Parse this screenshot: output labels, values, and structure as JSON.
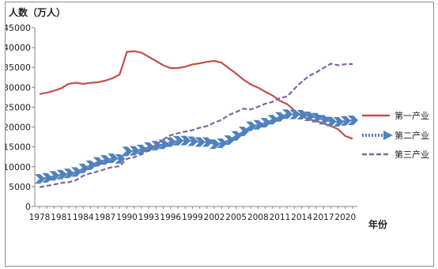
{
  "chart_data": {
    "type": "line",
    "ylabel": "人数（万人）",
    "xlabel": "年份",
    "ylim": [
      0,
      45000
    ],
    "yticks": [
      0,
      5000,
      10000,
      15000,
      20000,
      25000,
      30000,
      35000,
      40000,
      45000
    ],
    "xtick_labels": [
      "1978",
      "1981",
      "1984",
      "1987",
      "1990",
      "1993",
      "1996",
      "1999",
      "2002",
      "2005",
      "2008",
      "2011",
      "2014",
      "2017",
      "2020"
    ],
    "x": [
      1978,
      1979,
      1980,
      1981,
      1982,
      1983,
      1984,
      1985,
      1986,
      1987,
      1988,
      1989,
      1990,
      1991,
      1992,
      1993,
      1994,
      1995,
      1996,
      1997,
      1998,
      1999,
      2000,
      2001,
      2002,
      2003,
      2004,
      2005,
      2006,
      2007,
      2008,
      2009,
      2010,
      2011,
      2012,
      2013,
      2014,
      2015,
      2016,
      2017,
      2018,
      2019,
      2020,
      2021
    ],
    "grid": false,
    "legend_position": "right",
    "series": [
      {
        "name": "第一产业",
        "color": "#c0504d",
        "style": "solid",
        "values": [
          28318,
          28634,
          29122,
          29777,
          30859,
          31151,
          30868,
          31130,
          31254,
          31663,
          32249,
          33225,
          38914,
          39098,
          38699,
          37680,
          36628,
          35530,
          34820,
          34840,
          35177,
          35768,
          36043,
          36399,
          36640,
          36204,
          34830,
          33442,
          31941,
          30731,
          29923,
          28890,
          27931,
          26594,
          25773,
          24171,
          22790,
          21919,
          21496,
          20944,
          20258,
          19445,
          17715,
          17072
        ]
      },
      {
        "name": "第二产业",
        "color": "#4f81bd",
        "style": "arrow-chevrons",
        "values": [
          6945,
          7214,
          7707,
          8003,
          8346,
          8679,
          9590,
          10384,
          11216,
          11726,
          12152,
          11976,
          13856,
          14015,
          14355,
          14965,
          15312,
          15655,
          16203,
          16547,
          16600,
          16421,
          16219,
          16234,
          15682,
          15927,
          16709,
          17766,
          18894,
          20186,
          20553,
          21080,
          21842,
          22544,
          23241,
          23170,
          23099,
          22693,
          22350,
          21824,
          21390,
          21305,
          21543,
          21712
        ]
      },
      {
        "name": "第三产业",
        "color": "#8064a2",
        "style": "dashed",
        "values": [
          4890,
          5177,
          5532,
          5945,
          6090,
          6606,
          7739,
          8359,
          8811,
          9395,
          9933,
          10129,
          11979,
          12378,
          13098,
          14163,
          15515,
          16880,
          17927,
          18432,
          18860,
          19205,
          19823,
          20228,
          21090,
          21809,
          23011,
          23771,
          24614,
          24404,
          25087,
          25857,
          26332,
          27282,
          27690,
          29636,
          31364,
          32839,
          33757,
          34872,
          35938,
          35561,
          35806,
          35868
        ]
      }
    ]
  }
}
